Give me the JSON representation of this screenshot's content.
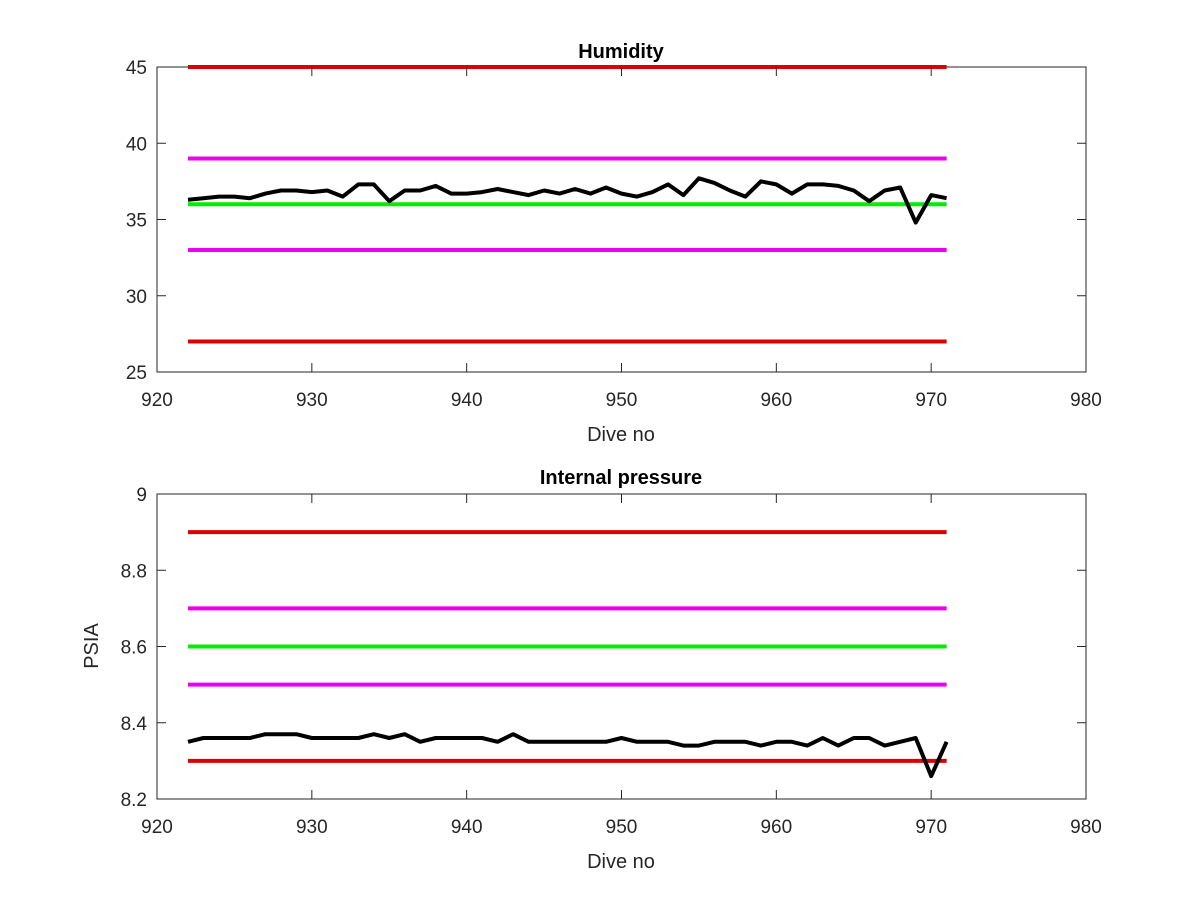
{
  "chart_data": [
    {
      "type": "line",
      "title": "Humidity",
      "xlabel": "Dive no",
      "ylabel": "",
      "xlim": [
        920,
        980
      ],
      "ylim": [
        25,
        45
      ],
      "xticks": [
        920,
        930,
        940,
        950,
        960,
        970,
        980
      ],
      "yticks": [
        25,
        30,
        35,
        40,
        45
      ],
      "grid": false,
      "reference_lines": [
        {
          "y": 45,
          "x": [
            922,
            971
          ],
          "color": "#dd0000"
        },
        {
          "y": 39,
          "x": [
            922,
            971
          ],
          "color": "#ee00ee"
        },
        {
          "y": 36,
          "x": [
            922,
            971
          ],
          "color": "#00ee00"
        },
        {
          "y": 33,
          "x": [
            922,
            971
          ],
          "color": "#ee00ee"
        },
        {
          "y": 27,
          "x": [
            922,
            971
          ],
          "color": "#dd0000"
        }
      ],
      "series": [
        {
          "color": "#000000",
          "x": [
            922,
            923,
            924,
            925,
            926,
            927,
            928,
            929,
            930,
            931,
            932,
            933,
            934,
            935,
            936,
            937,
            938,
            939,
            940,
            941,
            942,
            943,
            944,
            945,
            946,
            947,
            948,
            949,
            950,
            951,
            952,
            953,
            954,
            955,
            956,
            957,
            958,
            959,
            960,
            961,
            962,
            963,
            964,
            965,
            966,
            967,
            968,
            969,
            970,
            971
          ],
          "y": [
            36.3,
            36.4,
            36.5,
            36.5,
            36.4,
            36.7,
            36.9,
            36.9,
            36.8,
            36.9,
            36.5,
            37.3,
            37.3,
            36.2,
            36.9,
            36.9,
            37.2,
            36.7,
            36.7,
            36.8,
            37.0,
            36.8,
            36.6,
            36.9,
            36.7,
            37.0,
            36.7,
            37.1,
            36.7,
            36.5,
            36.8,
            37.3,
            36.6,
            37.7,
            37.4,
            36.9,
            36.5,
            37.5,
            37.3,
            36.7,
            37.3,
            37.3,
            37.2,
            36.9,
            36.2,
            36.9,
            37.1,
            34.8,
            36.6,
            36.4
          ]
        }
      ]
    },
    {
      "type": "line",
      "title": "Internal pressure",
      "xlabel": "Dive no",
      "ylabel": "PSIA",
      "xlim": [
        920,
        980
      ],
      "ylim": [
        8.2,
        9
      ],
      "xticks": [
        920,
        930,
        940,
        950,
        960,
        970,
        980
      ],
      "yticks": [
        "8.2",
        "8.4",
        "8.6",
        "8.8",
        "9"
      ],
      "grid": false,
      "reference_lines": [
        {
          "y": 8.9,
          "x": [
            922,
            971
          ],
          "color": "#dd0000"
        },
        {
          "y": 8.7,
          "x": [
            922,
            971
          ],
          "color": "#ee00ee"
        },
        {
          "y": 8.6,
          "x": [
            922,
            971
          ],
          "color": "#00ee00"
        },
        {
          "y": 8.5,
          "x": [
            922,
            971
          ],
          "color": "#ee00ee"
        },
        {
          "y": 8.3,
          "x": [
            922,
            971
          ],
          "color": "#dd0000"
        }
      ],
      "series": [
        {
          "color": "#000000",
          "x": [
            922,
            923,
            924,
            925,
            926,
            927,
            928,
            929,
            930,
            931,
            932,
            933,
            934,
            935,
            936,
            937,
            938,
            939,
            940,
            941,
            942,
            943,
            944,
            945,
            946,
            947,
            948,
            949,
            950,
            951,
            952,
            953,
            954,
            955,
            956,
            957,
            958,
            959,
            960,
            961,
            962,
            963,
            964,
            965,
            966,
            967,
            968,
            969,
            970,
            971
          ],
          "y": [
            8.35,
            8.36,
            8.36,
            8.36,
            8.36,
            8.37,
            8.37,
            8.37,
            8.36,
            8.36,
            8.36,
            8.36,
            8.37,
            8.36,
            8.37,
            8.35,
            8.36,
            8.36,
            8.36,
            8.36,
            8.35,
            8.37,
            8.35,
            8.35,
            8.35,
            8.35,
            8.35,
            8.35,
            8.36,
            8.35,
            8.35,
            8.35,
            8.34,
            8.34,
            8.35,
            8.35,
            8.35,
            8.34,
            8.35,
            8.35,
            8.34,
            8.36,
            8.34,
            8.36,
            8.36,
            8.34,
            8.35,
            8.36,
            8.26,
            8.35
          ]
        }
      ]
    }
  ]
}
